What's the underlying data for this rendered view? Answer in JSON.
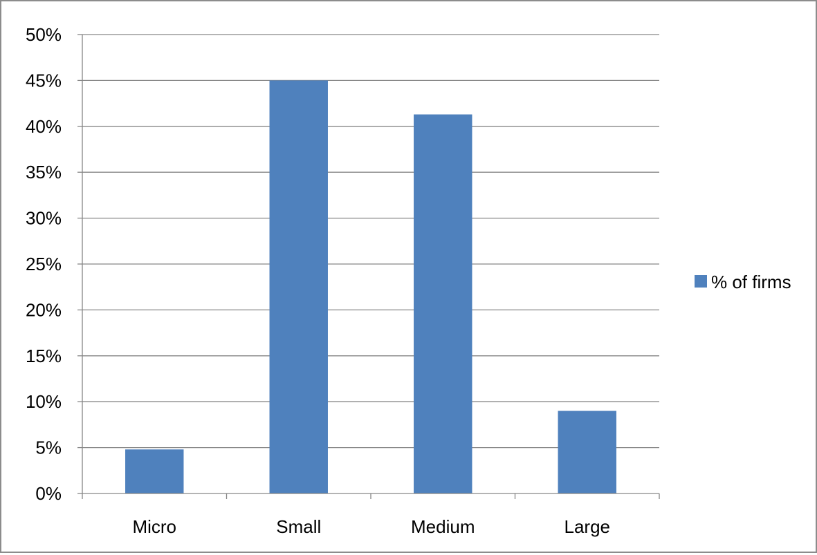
{
  "chart_data": {
    "type": "bar",
    "categories": [
      "Micro",
      "Small",
      "Medium",
      "Large"
    ],
    "series": [
      {
        "name": "% of firms",
        "values": [
          4.8,
          45.0,
          41.3,
          9.0
        ]
      }
    ],
    "title": "",
    "xlabel": "",
    "ylabel": "",
    "ylim": [
      0,
      50
    ],
    "yticks": [
      0,
      5,
      10,
      15,
      20,
      25,
      30,
      35,
      40,
      45,
      50
    ],
    "ytick_labels": [
      "0%",
      "5%",
      "10%",
      "15%",
      "20%",
      "25%",
      "30%",
      "35%",
      "40%",
      "45%",
      "50%"
    ],
    "grid": true,
    "legend": "right",
    "colors": {
      "bar": "#4f81bd",
      "grid": "#868686",
      "axis": "#868686",
      "frame": "#8c8c8c"
    }
  }
}
